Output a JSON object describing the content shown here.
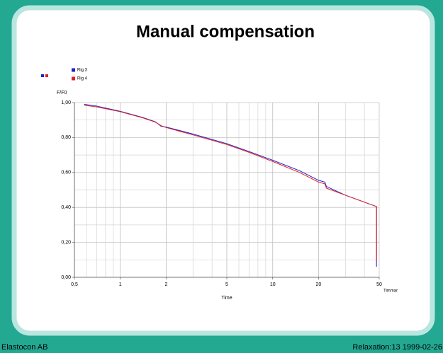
{
  "footer_left": "Elastocon AB",
  "footer_right": "Relaxation:13  1999-02-26",
  "chart_data": {
    "type": "line",
    "title": "Manual compensation",
    "ylabel": "F/F0",
    "xlabel": "Time",
    "xunit": "Timmar",
    "log_x": true,
    "grid": true,
    "xlim": [
      0.5,
      50
    ],
    "ylim": [
      0,
      1
    ],
    "xticks": [
      {
        "value": 0.5,
        "label": "0,5"
      },
      1,
      2,
      5,
      10,
      20,
      50
    ],
    "yticks": [
      {
        "value": 0,
        "label": "0,00"
      },
      {
        "value": 0.2,
        "label": "0,20"
      },
      {
        "value": 0.4,
        "label": "0,40"
      },
      {
        "value": 0.6,
        "label": "0,60"
      },
      {
        "value": 0.8,
        "label": "0,80"
      },
      {
        "value": 1,
        "label": "1,00"
      }
    ],
    "series": [
      {
        "name": "Rig 3",
        "color": "#1f1fd0",
        "x": [
          0.58,
          0.7,
          1,
          1.4,
          1.7,
          1.85,
          2,
          3,
          5,
          7,
          10,
          15,
          20,
          22,
          22.5,
          30,
          40,
          48,
          48
        ],
        "values": [
          0.99,
          0.98,
          0.95,
          0.915,
          0.89,
          0.865,
          0.86,
          0.82,
          0.765,
          0.72,
          0.67,
          0.61,
          0.555,
          0.545,
          0.52,
          0.47,
          0.43,
          0.405,
          0.06
        ]
      },
      {
        "name": "Rig 4",
        "color": "#e02020",
        "x": [
          0.58,
          0.7,
          1,
          1.4,
          1.7,
          1.85,
          2,
          3,
          5,
          7,
          10,
          15,
          20,
          22,
          22.5,
          30,
          40,
          48,
          48
        ],
        "values": [
          0.985,
          0.975,
          0.948,
          0.913,
          0.888,
          0.868,
          0.857,
          0.815,
          0.76,
          0.715,
          0.663,
          0.6,
          0.545,
          0.535,
          0.51,
          0.47,
          0.43,
          0.405,
          0.09
        ]
      }
    ]
  }
}
